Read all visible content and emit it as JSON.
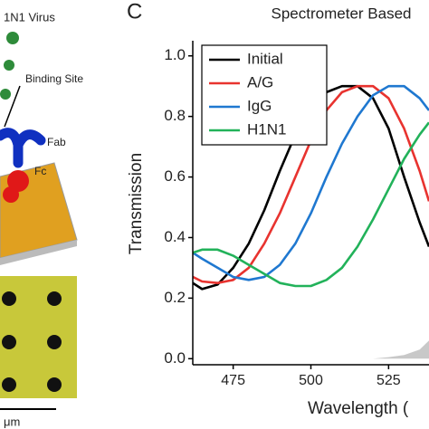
{
  "panel_label": "C",
  "illustration": {
    "virus_label": "1N1 Virus",
    "binding_label": "Binding Site",
    "fab_label": "Fab",
    "fc_label": "Fc",
    "scale_label": "μm"
  },
  "chart_data": {
    "type": "line",
    "title": "Spectrometer Based",
    "xlabel": "Wavelength (",
    "ylabel": "Transmission",
    "x": [
      462,
      465,
      470,
      475,
      480,
      485,
      490,
      495,
      500,
      505,
      510,
      515,
      520,
      525,
      530,
      535,
      538
    ],
    "series": [
      {
        "name": "Initial",
        "color": "#000000",
        "values": [
          0.25,
          0.23,
          0.245,
          0.3,
          0.38,
          0.49,
          0.62,
          0.74,
          0.83,
          0.88,
          0.9,
          0.9,
          0.86,
          0.76,
          0.6,
          0.45,
          0.37
        ]
      },
      {
        "name": "A/G",
        "color": "#e8332f",
        "values": [
          0.27,
          0.255,
          0.25,
          0.26,
          0.3,
          0.38,
          0.48,
          0.6,
          0.72,
          0.82,
          0.88,
          0.9,
          0.9,
          0.86,
          0.76,
          0.62,
          0.52
        ]
      },
      {
        "name": "IgG",
        "color": "#1f78d0",
        "values": [
          0.35,
          0.33,
          0.3,
          0.27,
          0.26,
          0.27,
          0.31,
          0.38,
          0.48,
          0.6,
          0.71,
          0.8,
          0.87,
          0.9,
          0.9,
          0.86,
          0.82
        ]
      },
      {
        "name": "H1N1",
        "color": "#22b25a",
        "values": [
          0.35,
          0.36,
          0.36,
          0.34,
          0.31,
          0.28,
          0.25,
          0.24,
          0.24,
          0.26,
          0.3,
          0.37,
          0.46,
          0.56,
          0.66,
          0.74,
          0.78
        ]
      }
    ],
    "fill": {
      "color": "#c8c8c8",
      "values": [
        0,
        0,
        0,
        0,
        0,
        0,
        0,
        0,
        0,
        0,
        0,
        0,
        0,
        0.005,
        0.012,
        0.03,
        0.06
      ]
    },
    "xlim": [
      462,
      538
    ],
    "ylim": [
      -0.02,
      1.05
    ],
    "xticks": [
      475,
      500,
      525
    ],
    "yticks": [
      {
        "value": 0,
        "label": "0.0"
      },
      0.2,
      0.4,
      0.6,
      0.8,
      {
        "value": 1,
        "label": "1.0"
      }
    ],
    "legend": "upper left"
  }
}
